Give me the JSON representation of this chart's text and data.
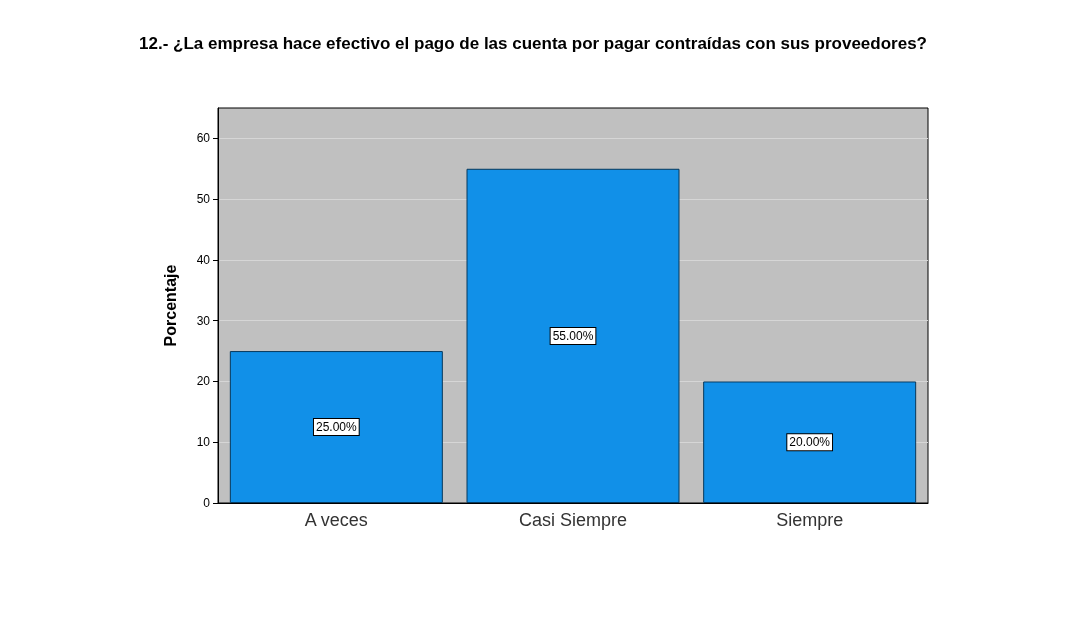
{
  "chart_data": {
    "type": "bar",
    "title": "12.- ¿La empresa hace efectivo el pago de las cuenta por pagar contraídas con sus proveedores?",
    "ylabel": "Porcentaje",
    "categories": [
      "A veces",
      "Casi Siempre",
      "Siempre"
    ],
    "values": [
      25,
      55,
      20
    ],
    "value_labels": [
      "25.00%",
      "55.00%",
      "20.00%"
    ],
    "color": "#1190e8",
    "ylim": [
      0,
      65
    ],
    "yticks": [
      0,
      10,
      20,
      30,
      40,
      50,
      60
    ],
    "grid": "y"
  }
}
